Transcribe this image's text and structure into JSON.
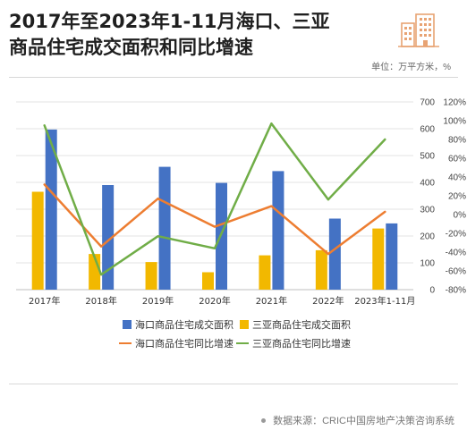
{
  "header": {
    "title_line1": "2017年至2023年1-11月海口、三亚",
    "title_line2": "商品住宅成交面积和同比增速",
    "unit": "单位：万平方米，%"
  },
  "footer": {
    "source": "数据来源：CRIC中国房地产决策咨询系统"
  },
  "colors": {
    "haikou_area": "#4472C4",
    "sanya_area": "#F2B800",
    "haikou_yoy": "#ED7D31",
    "sanya_yoy": "#70AD47",
    "logo": "#E8A373"
  },
  "chart_data": {
    "type": "bar",
    "categories": [
      "2017年",
      "2018年",
      "2019年",
      "2020年",
      "2021年",
      "2022年",
      "2023年1-11月"
    ],
    "left_axis": {
      "ylim": [
        0,
        700
      ],
      "ticks": [
        0,
        100,
        200,
        300,
        400,
        500,
        600,
        700
      ]
    },
    "right_axis": {
      "ylim": [
        -80,
        120
      ],
      "ticks": [
        "-80%",
        "-60%",
        "-40%",
        "-20%",
        "0%",
        "20%",
        "40%",
        "60%",
        "80%",
        "100%",
        "120%"
      ]
    },
    "series": [
      {
        "name": "海口商品住宅成交面积",
        "kind": "bar",
        "axis": "left",
        "values": [
          597,
          390,
          458,
          398,
          442,
          265,
          247
        ]
      },
      {
        "name": "三亚商品住宅成交面积",
        "kind": "bar",
        "axis": "left",
        "values": [
          365,
          133,
          103,
          65,
          128,
          147,
          228
        ]
      },
      {
        "name": "海口商品住宅同比增速",
        "kind": "line",
        "axis": "right",
        "values": [
          32,
          -34,
          17,
          -13,
          9,
          -42,
          3
        ]
      },
      {
        "name": "三亚商品住宅同比增速",
        "kind": "line",
        "axis": "right",
        "values": [
          95,
          -64,
          -23,
          -36,
          97,
          16,
          80
        ]
      }
    ],
    "legend_position": "bottom",
    "grid": "horizontal"
  }
}
